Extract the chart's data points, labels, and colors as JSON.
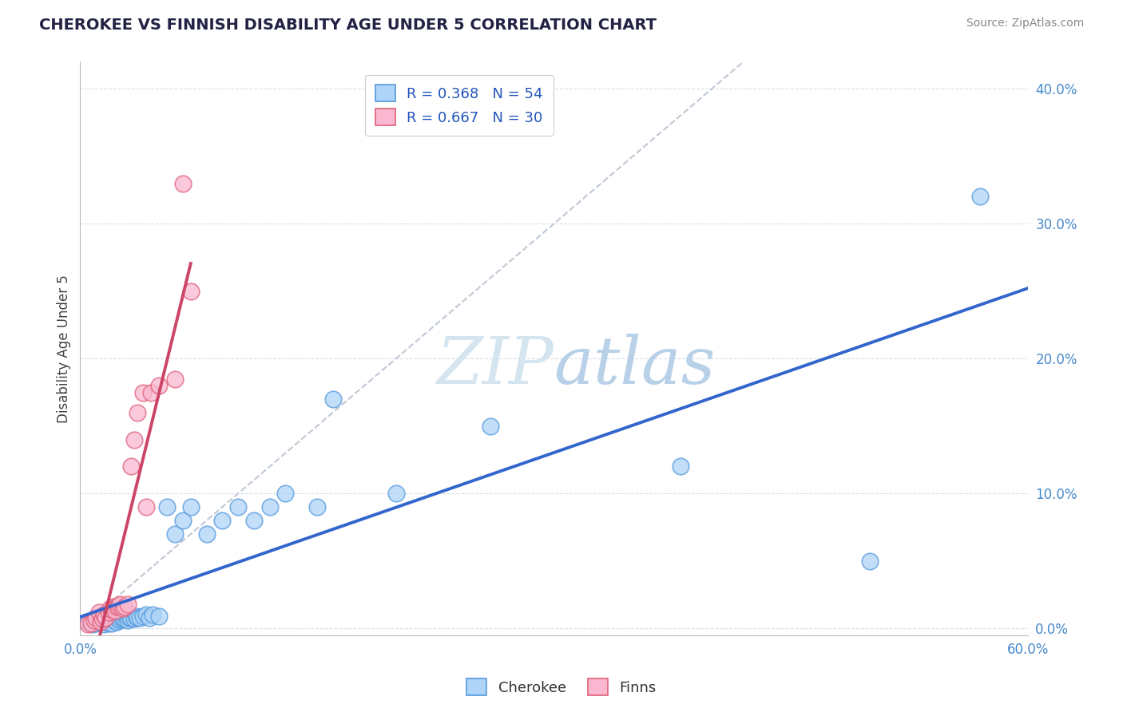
{
  "title": "CHEROKEE VS FINNISH DISABILITY AGE UNDER 5 CORRELATION CHART",
  "source": "Source: ZipAtlas.com",
  "ylabel": "Disability Age Under 5",
  "xlim": [
    0.0,
    0.6
  ],
  "ylim": [
    -0.005,
    0.42
  ],
  "ytick_vals": [
    0.0,
    0.1,
    0.2,
    0.3,
    0.4
  ],
  "ytick_labels": [
    "0.0%",
    "10.0%",
    "20.0%",
    "30.0%",
    "40.0%"
  ],
  "xtick_labels": [
    "0.0%",
    "60.0%"
  ],
  "cherokee_R": "0.368",
  "cherokee_N": "54",
  "finns_R": "0.667",
  "finns_N": "30",
  "cherokee_color": "#aed4f7",
  "cherokee_edge_color": "#5599dd",
  "finns_color": "#f9b8d0",
  "finns_edge_color": "#e0607a",
  "cherokee_line_color": "#3366cc",
  "finns_line_color": "#cc4466",
  "watermark_color": "#d5e5f0",
  "background_color": "#ffffff",
  "grid_color": "#d8dfe8",
  "cherokee_x": [
    0.005,
    0.008,
    0.01,
    0.01,
    0.012,
    0.013,
    0.015,
    0.015,
    0.015,
    0.017,
    0.018,
    0.018,
    0.019,
    0.02,
    0.02,
    0.02,
    0.022,
    0.022,
    0.023,
    0.024,
    0.025,
    0.026,
    0.027,
    0.028,
    0.029,
    0.03,
    0.031,
    0.032,
    0.034,
    0.035,
    0.036,
    0.038,
    0.04,
    0.042,
    0.044,
    0.046,
    0.05,
    0.055,
    0.06,
    0.065,
    0.07,
    0.08,
    0.09,
    0.1,
    0.11,
    0.12,
    0.13,
    0.15,
    0.16,
    0.2,
    0.26,
    0.38,
    0.5,
    0.57
  ],
  "cherokee_y": [
    0.005,
    0.003,
    0.004,
    0.008,
    0.005,
    0.006,
    0.003,
    0.005,
    0.007,
    0.005,
    0.004,
    0.007,
    0.006,
    0.004,
    0.007,
    0.01,
    0.006,
    0.008,
    0.005,
    0.007,
    0.006,
    0.007,
    0.008,
    0.007,
    0.009,
    0.006,
    0.008,
    0.008,
    0.007,
    0.009,
    0.008,
    0.008,
    0.009,
    0.01,
    0.008,
    0.01,
    0.009,
    0.09,
    0.07,
    0.08,
    0.09,
    0.07,
    0.08,
    0.09,
    0.08,
    0.09,
    0.1,
    0.09,
    0.17,
    0.1,
    0.15,
    0.12,
    0.05,
    0.32
  ],
  "finns_x": [
    0.005,
    0.007,
    0.009,
    0.01,
    0.012,
    0.013,
    0.014,
    0.015,
    0.016,
    0.018,
    0.019,
    0.02,
    0.021,
    0.022,
    0.023,
    0.024,
    0.025,
    0.027,
    0.028,
    0.03,
    0.032,
    0.034,
    0.036,
    0.04,
    0.042,
    0.045,
    0.05,
    0.06,
    0.065,
    0.07
  ],
  "finns_y": [
    0.003,
    0.004,
    0.006,
    0.008,
    0.012,
    0.005,
    0.007,
    0.01,
    0.008,
    0.012,
    0.015,
    0.014,
    0.016,
    0.013,
    0.016,
    0.017,
    0.018,
    0.015,
    0.016,
    0.018,
    0.12,
    0.14,
    0.16,
    0.175,
    0.09,
    0.175,
    0.18,
    0.185,
    0.33,
    0.25
  ]
}
